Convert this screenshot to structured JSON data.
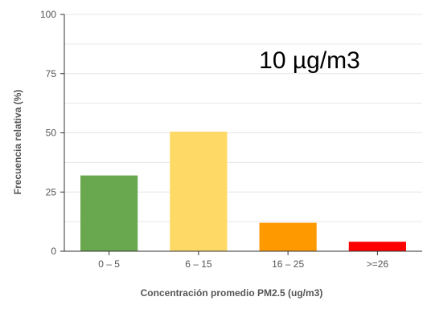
{
  "chart_data": {
    "type": "bar",
    "annotation": "10 µg/m3",
    "xlabel": "Concentración promedio PM2.5 (ug/m3)",
    "ylabel": "Frecuencia relativa (%)",
    "categories": [
      "0 – 5",
      "6 – 15",
      "16 – 25",
      ">=26"
    ],
    "values": [
      32,
      50.5,
      12,
      4
    ],
    "bar_colors": [
      "#6aa84f",
      "#ffd966",
      "#ff9900",
      "#ff0000"
    ],
    "ylim": [
      0,
      100
    ],
    "yticks": [
      "0",
      "25",
      "50",
      "75",
      "100"
    ],
    "grid": true,
    "legend": "none"
  }
}
